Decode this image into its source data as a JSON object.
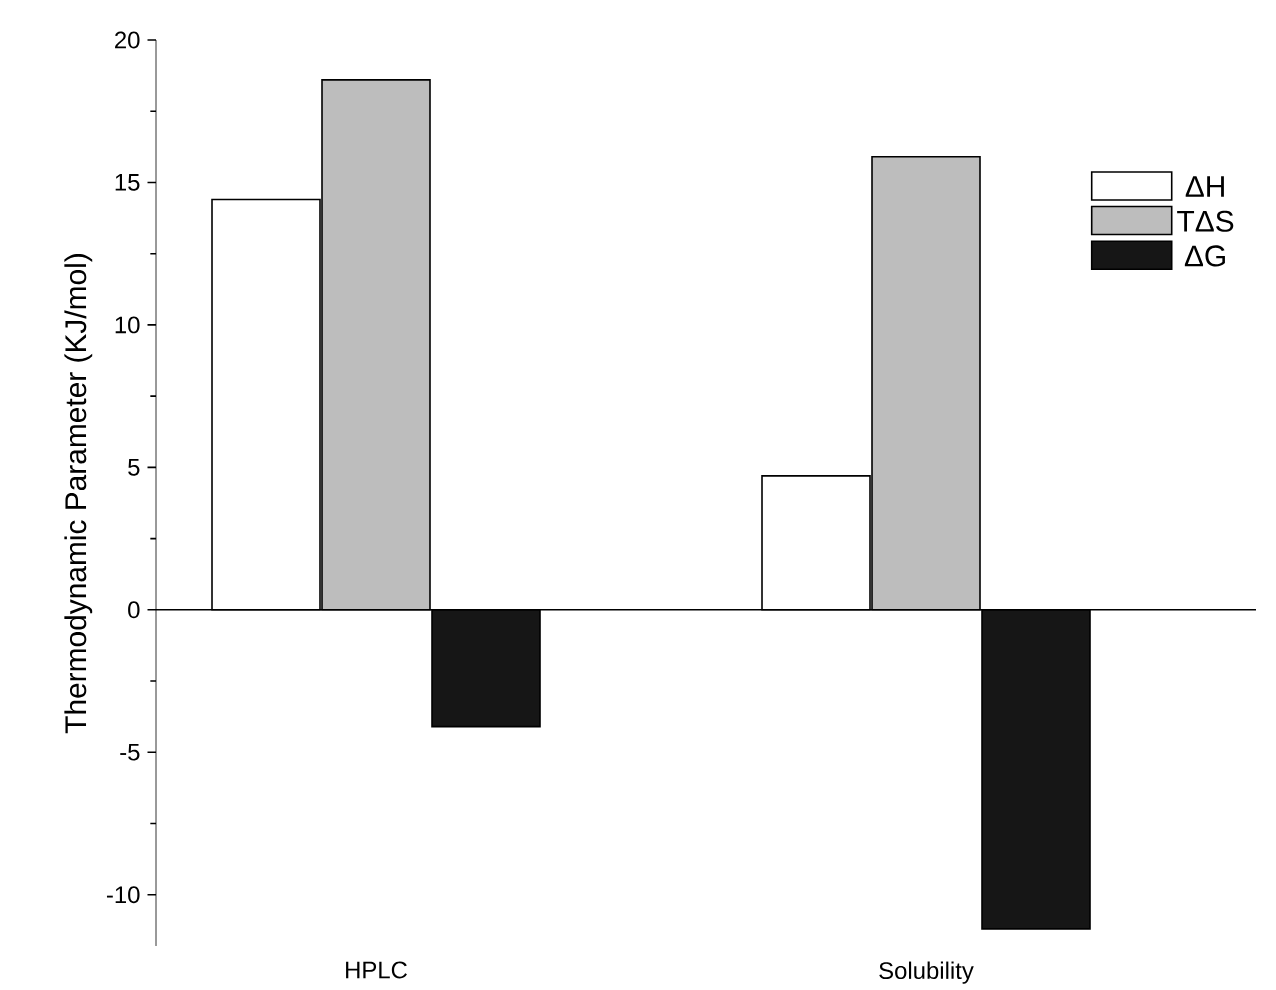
{
  "chart_data": {
    "type": "bar",
    "ylabel": "Thermodynamic Parameter (KJ/mol)",
    "categories": [
      "HPLC",
      "Solubility"
    ],
    "series": [
      {
        "name": "ΔH",
        "color": "#ffffff",
        "values": [
          14.4,
          4.7
        ]
      },
      {
        "name": "TΔS",
        "color": "#bdbdbd",
        "values": [
          18.6,
          15.9
        ]
      },
      {
        "name": "ΔG",
        "color": "#161616",
        "values": [
          -4.1,
          -11.2
        ]
      }
    ],
    "ylim": [
      -11.8,
      20
    ],
    "yticks": [
      -10,
      -5,
      0,
      5,
      10,
      15,
      20
    ],
    "legend": "top right"
  }
}
